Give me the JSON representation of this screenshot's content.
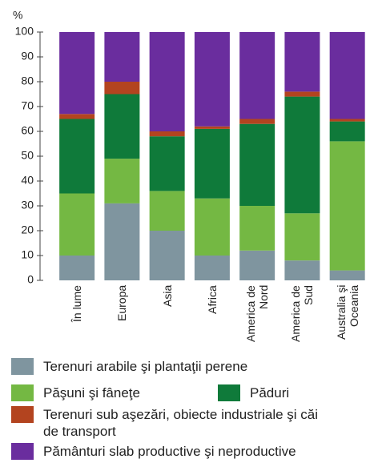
{
  "chart_data": {
    "type": "stacked_bar",
    "ylabel": "%",
    "categories": [
      "În lume",
      "Europa",
      "Asia",
      "Africa",
      "America de Nord",
      "America de Sud",
      "Australia şi Oceania"
    ],
    "ylim": [
      0,
      100
    ],
    "yticks": [
      0,
      10,
      20,
      30,
      40,
      50,
      60,
      70,
      80,
      90,
      100
    ],
    "series": [
      {
        "name": "Terenuri arabile şi plantaţii perene",
        "color": "#7f959f",
        "values": [
          10,
          31,
          20,
          10,
          12,
          8,
          4
        ]
      },
      {
        "name": "Păşuni şi fâneţe",
        "color": "#74b843",
        "values": [
          25,
          18,
          16,
          23,
          18,
          19,
          52
        ]
      },
      {
        "name": "Păduri",
        "color": "#0f7a3a",
        "values": [
          30,
          26,
          22,
          28,
          33,
          47,
          8
        ]
      },
      {
        "name": "Terenuri sub aşezări, obiecte industriale şi căi de transport",
        "color": "#b3441f",
        "values": [
          2,
          5,
          2,
          1,
          2,
          2,
          1
        ]
      },
      {
        "name": "Pământuri slab productive şi neproductive",
        "color": "#6a2d9e",
        "values": [
          33,
          20,
          40,
          38,
          35,
          24,
          35
        ]
      }
    ]
  }
}
